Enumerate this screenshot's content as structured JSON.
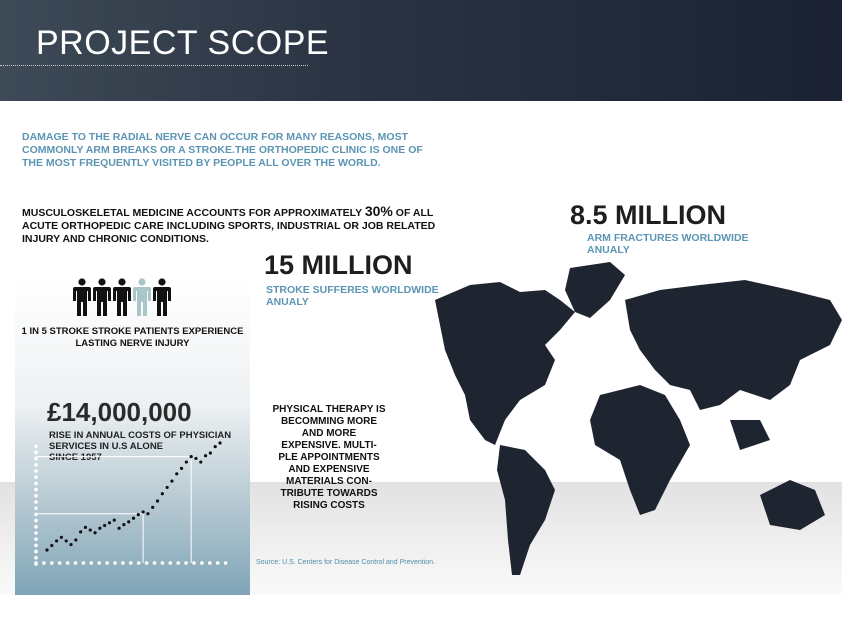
{
  "header": {
    "title": "PROJECT SCOPE"
  },
  "intro": "DAMAGE TO THE RADIAL NERVE CAN OCCUR FOR MANY REASONS, MOST COMMONLY ARM BREAKS OR A STROKE.THE ORTHOPEDIC CLINIC IS ONE OF THE MOST FREQUENTLY VISITED BY PEOPLE ALL OVER THE WORLD.",
  "musculo": {
    "before": "MUSCULOSKELETAL MEDICINE ACCOUNTS FOR APPROXIMATELY ",
    "percent": "30%",
    "after": " OF ALL ACUTE ORTHOPEDIC CARE INCLUDING SPORTS, INDUSTRIAL OR JOB RELATED INJURY AND CHRONIC CONDITIONS."
  },
  "stats": [
    {
      "value": "8.5 MILLION",
      "label": "ARM FRACTURES WORLDWIDE ANUALY"
    },
    {
      "value": "15 MILLION",
      "label": "STROKE SUFFERES WORLDWIDE ANUALY"
    }
  ],
  "people": {
    "total": 5,
    "highlighted": 4,
    "icon": "person-icon",
    "color": "#111111",
    "highlight_color": "#a9c6c8",
    "caption": "1 IN 5 STROKE STROKE PATIENTS EXPERIENCE LASTING NERVE INJURY"
  },
  "cost": {
    "value": "£14,000,000",
    "label": "RISE IN ANNUAL COSTS OF PHYSICIAN SERVICES IN U.S ALONE",
    "since": "SINCE 1957",
    "trend": [
      0,
      5,
      10,
      14,
      10,
      6,
      11,
      20,
      25,
      22,
      19,
      24,
      27,
      30,
      33,
      24,
      28,
      31,
      35,
      39,
      42,
      40,
      47,
      54,
      62,
      69,
      76,
      84,
      90,
      97,
      103,
      101,
      97,
      104,
      107,
      114,
      118
    ]
  },
  "therapy": "PHYSICAL THERAPY IS BECOMMING MORE AND MORE EXPENSIVE. MULTI-PLE APPOINTMENTS AND EXPENSIVE MATERIALS CON-TRIBUTE TOWARDS RISING COSTS",
  "source": "Source: U.S. Centers for Disease Control and Prevention.",
  "colors": {
    "accent": "#5b95b3",
    "map": "#1f2530"
  }
}
